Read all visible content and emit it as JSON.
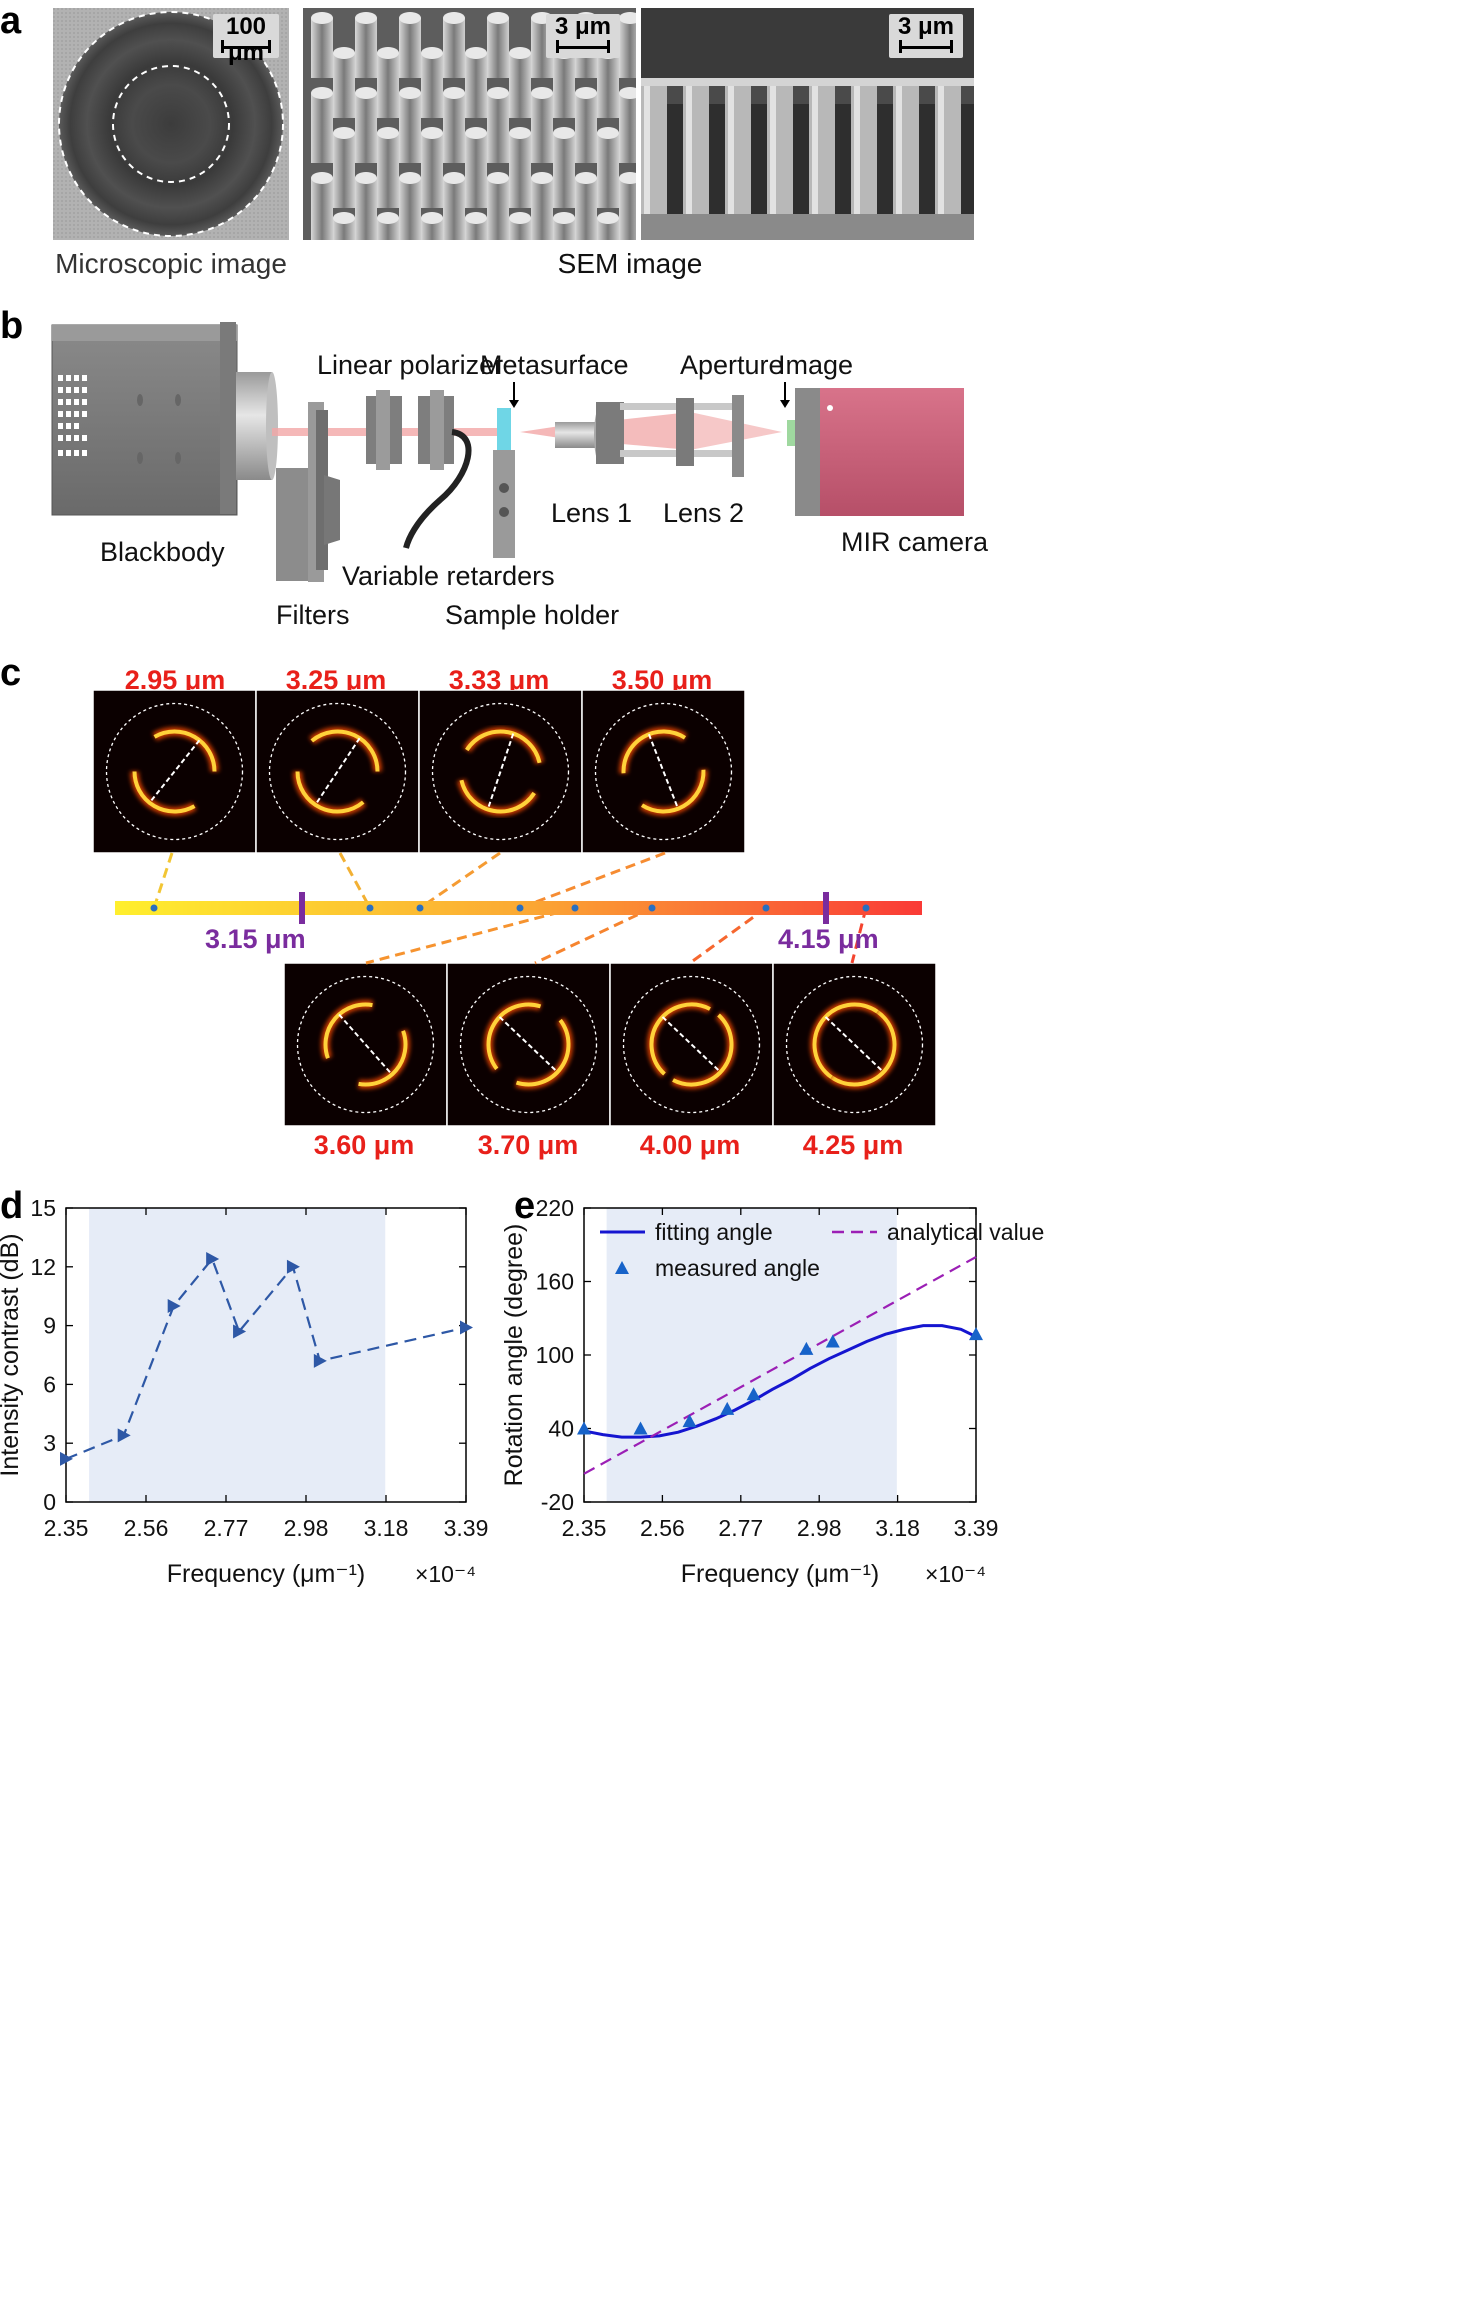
{
  "panels": {
    "a": {
      "letter": "a",
      "captions": [
        "Microscopic image",
        "SEM image"
      ],
      "scalebars": [
        "100 μm",
        "3 μm",
        "3 μm"
      ]
    },
    "b": {
      "letter": "b",
      "labels": {
        "blackbody": "Blackbody",
        "filters": "Filters",
        "linear_polarizer": "Linear polarizer",
        "variable_retarders": "Variable retarders",
        "metasurface": "Metasurface",
        "sample_holder": "Sample holder",
        "lens1": "Lens 1",
        "lens2": "Lens 2",
        "aperture": "Aperture",
        "image": "Image",
        "mir_camera": "MIR camera"
      }
    },
    "c": {
      "letter": "c",
      "top_wavelengths": [
        "2.95 μm",
        "3.25 μm",
        "3.33 μm",
        "3.50 μm"
      ],
      "bottom_wavelengths": [
        "3.60 μm",
        "3.70 μm",
        "4.00 μm",
        "4.25 μm"
      ],
      "band_markers": [
        "3.15 μm",
        "4.15 μm"
      ]
    },
    "d": {
      "letter": "d"
    },
    "e": {
      "letter": "e"
    }
  },
  "chart_data": [
    {
      "type": "line",
      "panel": "d",
      "xlabel": "Frequency (μm⁻¹)",
      "ylabel": "Intensity contrast (dB)",
      "x_multiplier": "×10⁻⁴",
      "xlim": [
        2.35,
        3.39
      ],
      "ylim": [
        0,
        15
      ],
      "xticks": [
        "2.35",
        "2.56",
        "2.77",
        "2.98",
        "3.18",
        "3.39"
      ],
      "yticks": [
        "0",
        "3",
        "6",
        "9",
        "12",
        "15"
      ],
      "shaded_x": [
        2.41,
        3.18
      ],
      "series": [
        {
          "color": "#2e58a6",
          "style": "dashed",
          "marker": "triangle-right",
          "x": [
            2.35,
            2.5,
            2.63,
            2.73,
            2.8,
            2.94,
            3.01,
            3.39
          ],
          "y": [
            2.2,
            3.4,
            10.0,
            12.4,
            8.7,
            12.0,
            7.2,
            8.9
          ]
        }
      ]
    },
    {
      "type": "line",
      "panel": "e",
      "xlabel": "Frequency (μm⁻¹)",
      "ylabel": "Rotation angle (degree)",
      "x_multiplier": "×10⁻⁴",
      "xlim": [
        2.35,
        3.39
      ],
      "ylim": [
        -20,
        220
      ],
      "xticks": [
        "2.35",
        "2.56",
        "2.77",
        "2.98",
        "3.18",
        "3.39"
      ],
      "yticks": [
        "-20",
        "40",
        "100",
        "160",
        "220"
      ],
      "shaded_x": [
        2.41,
        3.18
      ],
      "legend": [
        "fitting angle",
        "analytical value",
        "measured angle"
      ],
      "series": [
        {
          "name": "fitting angle",
          "color": "#1515d0",
          "style": "solid",
          "x": [
            2.35,
            2.4,
            2.45,
            2.5,
            2.55,
            2.6,
            2.65,
            2.7,
            2.75,
            2.8,
            2.85,
            2.9,
            2.95,
            3.0,
            3.05,
            3.1,
            3.15,
            3.2,
            3.25,
            3.3,
            3.35,
            3.39
          ],
          "y": [
            38,
            35,
            33,
            33,
            34,
            37,
            42,
            48,
            55,
            63,
            72,
            80,
            89,
            97,
            104,
            111,
            117,
            121,
            124,
            124,
            121,
            115
          ]
        },
        {
          "name": "analytical value",
          "color": "#9b1fb5",
          "style": "dashed",
          "x": [
            2.35,
            3.39
          ],
          "y": [
            3,
            180
          ]
        },
        {
          "name": "measured angle",
          "color": "#1763c9",
          "style": "markers",
          "marker": "triangle-up",
          "x": [
            2.35,
            2.5,
            2.63,
            2.73,
            2.8,
            2.94,
            3.01,
            3.39
          ],
          "y": [
            40,
            40,
            46,
            56,
            68,
            105,
            111,
            117
          ]
        }
      ]
    }
  ]
}
